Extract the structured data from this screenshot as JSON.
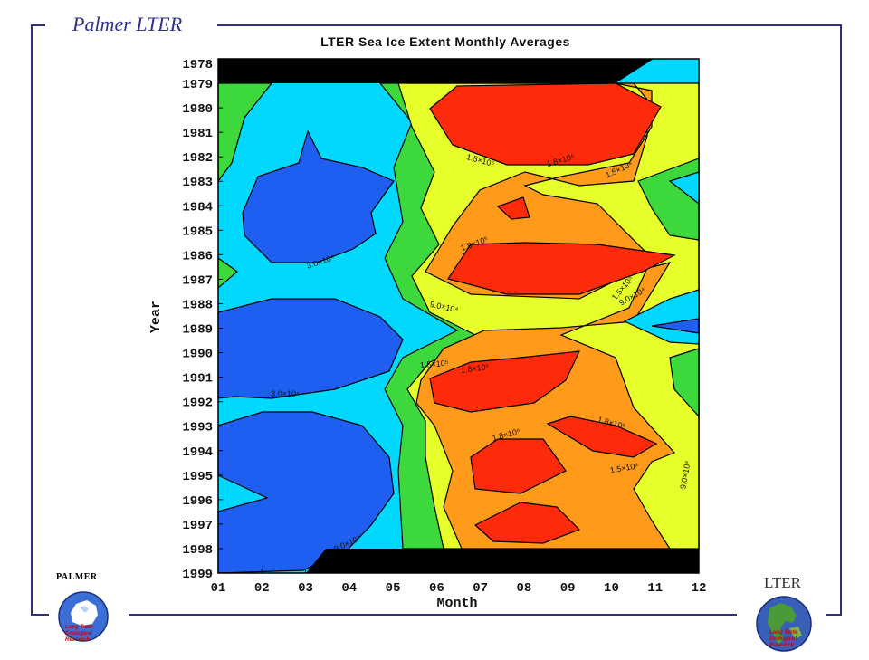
{
  "header": {
    "title": "Palmer LTER"
  },
  "chart_data": {
    "type": "heatmap",
    "title": "LTER Sea Ice Extent Monthly Averages",
    "xlabel": "Month",
    "ylabel": "Year",
    "x_ticks": [
      "01",
      "02",
      "03",
      "04",
      "05",
      "06",
      "07",
      "08",
      "09",
      "10",
      "11",
      "12"
    ],
    "y_ticks": [
      "1978",
      "1979",
      "1980",
      "1981",
      "1982",
      "1983",
      "1984",
      "1985",
      "1986",
      "1987",
      "1988",
      "1989",
      "1990",
      "1991",
      "1992",
      "1993",
      "1994",
      "1995",
      "1996",
      "1997",
      "1998",
      "1999"
    ],
    "contour_labels": [
      "3.0×10⁴",
      "3.0×10⁴",
      "9.0×10⁴",
      "9.0×10⁴",
      "9.0×10⁴",
      "9.0×10⁴",
      "1.5×10⁵",
      "1.5×10⁵",
      "1.5×10⁵",
      "1.5×10⁵",
      "1.5×10⁵",
      "1.8×10⁵",
      "1.8×10⁵",
      "1.8×10⁵",
      "1.8×10⁵",
      "1.8×10⁵"
    ],
    "colors": {
      "dark_blue": "#1e5ef0",
      "cyan": "#00d8ff",
      "green": "#3cd83c",
      "yellow": "#e6ff2a",
      "orange": "#ff9a1a",
      "red": "#ff2a0a",
      "no_data": "#000000"
    }
  },
  "logos": {
    "left": {
      "name": "PALMER",
      "caption": [
        "Long Term",
        "Ecological",
        "Research"
      ]
    },
    "right": {
      "name": "LTER",
      "caption": [
        "Long Term",
        "Ecological",
        "Research"
      ]
    }
  }
}
